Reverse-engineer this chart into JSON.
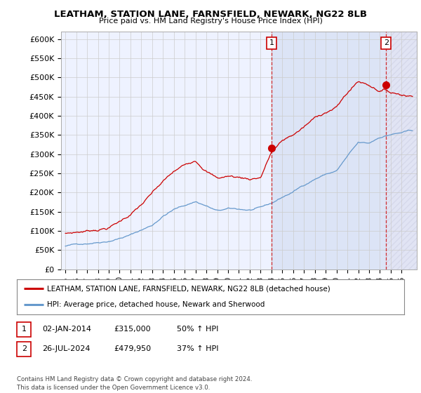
{
  "title": "LEATHAM, STATION LANE, FARNSFIELD, NEWARK, NG22 8LB",
  "subtitle": "Price paid vs. HM Land Registry's House Price Index (HPI)",
  "xlim": [
    1994.6,
    2027.4
  ],
  "ylim": [
    0,
    620000
  ],
  "yticks": [
    0,
    50000,
    100000,
    150000,
    200000,
    250000,
    300000,
    350000,
    400000,
    450000,
    500000,
    550000,
    600000
  ],
  "ytick_labels": [
    "£0",
    "£50K",
    "£100K",
    "£150K",
    "£200K",
    "£250K",
    "£300K",
    "£350K",
    "£400K",
    "£450K",
    "£500K",
    "£550K",
    "£600K"
  ],
  "xticks": [
    1995,
    1996,
    1997,
    1998,
    1999,
    2000,
    2001,
    2002,
    2003,
    2004,
    2005,
    2006,
    2007,
    2008,
    2009,
    2010,
    2011,
    2012,
    2013,
    2014,
    2015,
    2016,
    2017,
    2018,
    2019,
    2020,
    2021,
    2022,
    2023,
    2024,
    2025,
    2026
  ],
  "sale1_x": 2014.01,
  "sale1_y": 315000,
  "sale2_x": 2024.57,
  "sale2_y": 479950,
  "legend_line1": "LEATHAM, STATION LANE, FARNSFIELD, NEWARK, NG22 8LB (detached house)",
  "legend_line2": "HPI: Average price, detached house, Newark and Sherwood",
  "table_row1": [
    "1",
    "02-JAN-2014",
    "£315,000",
    "50% ↑ HPI"
  ],
  "table_row2": [
    "2",
    "26-JUL-2024",
    "£479,950",
    "37% ↑ HPI"
  ],
  "footer": "Contains HM Land Registry data © Crown copyright and database right 2024.\nThis data is licensed under the Open Government Licence v3.0.",
  "red_color": "#cc0000",
  "blue_color": "#6699cc",
  "grid_color": "#cccccc",
  "bg_color": "#eef2ff",
  "hatch_color": "#c8cce0"
}
